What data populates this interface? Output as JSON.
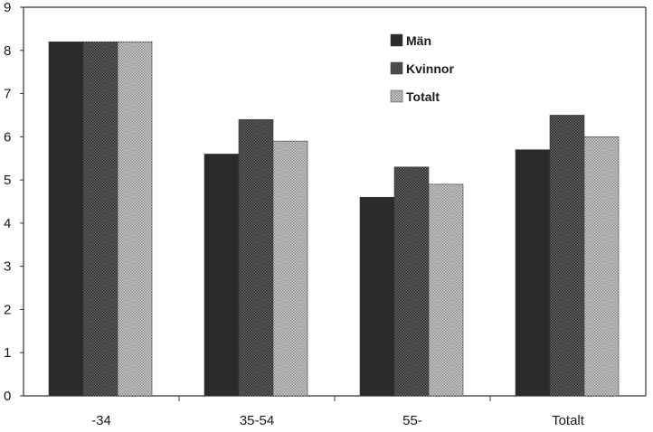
{
  "chart_data": {
    "type": "bar",
    "title": "",
    "xlabel": "",
    "ylabel": "",
    "categories": [
      "-34",
      "35-54",
      "55-",
      "Totalt"
    ],
    "series": [
      {
        "name": "Män",
        "values": [
          8.2,
          5.6,
          4.6,
          5.7
        ],
        "color": "#2b2b2b",
        "pattern": "solid"
      },
      {
        "name": "Kvinnor",
        "values": [
          8.2,
          6.4,
          5.3,
          6.5
        ],
        "color": "#5a5a5a",
        "pattern": "dark-dots"
      },
      {
        "name": "Totalt",
        "values": [
          8.2,
          5.9,
          4.9,
          6.0
        ],
        "color": "#b0b0b0",
        "pattern": "light-dots"
      }
    ],
    "ylim": [
      0,
      9
    ],
    "yticks": [
      "0",
      "1",
      "2",
      "3",
      "4",
      "5",
      "6",
      "7",
      "8",
      "9"
    ],
    "grid": false,
    "legend_position": "top-right"
  }
}
